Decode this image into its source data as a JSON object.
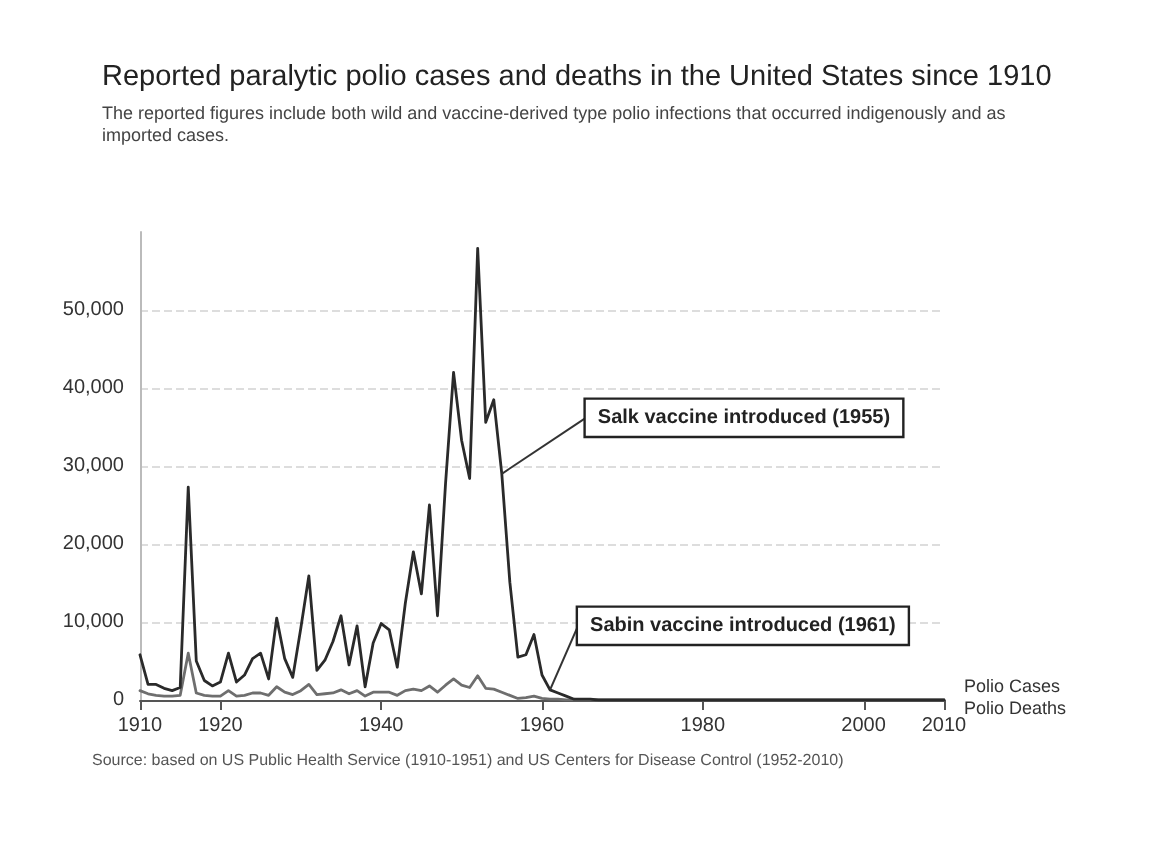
{
  "chart_data": {
    "type": "line",
    "title": "Reported paralytic polio cases and deaths in the United States since 1910",
    "subtitle": "The reported figures include both wild and vaccine-derived type polio infections that occurred indigenously and as imported cases.",
    "x": [
      1910,
      1911,
      1912,
      1913,
      1914,
      1915,
      1916,
      1917,
      1918,
      1919,
      1920,
      1921,
      1922,
      1923,
      1924,
      1925,
      1926,
      1927,
      1928,
      1929,
      1930,
      1931,
      1932,
      1933,
      1934,
      1935,
      1936,
      1937,
      1938,
      1939,
      1940,
      1941,
      1942,
      1943,
      1944,
      1945,
      1946,
      1947,
      1948,
      1949,
      1950,
      1951,
      1952,
      1953,
      1954,
      1955,
      1956,
      1957,
      1958,
      1959,
      1960,
      1961,
      1962,
      1963,
      1964,
      1965,
      1966,
      1967,
      1968,
      1969,
      1970,
      1980,
      1990,
      2000,
      2010
    ],
    "series": [
      {
        "name": "Polio Cases",
        "color": "#2a2a2a",
        "values": [
          5800,
          2000,
          2000,
          1500,
          1200,
          1600,
          27300,
          5000,
          2500,
          1800,
          2300,
          6000,
          2300,
          3200,
          5300,
          6000,
          2700,
          10500,
          5300,
          2900,
          9200,
          15900,
          3800,
          5100,
          7500,
          10800,
          4500,
          9500,
          1700,
          7300,
          9800,
          9000,
          4200,
          12400,
          19000,
          13600,
          25000,
          10800,
          27700,
          42000,
          33300,
          28400,
          57900,
          35600,
          38500,
          29000,
          15100,
          5500,
          5800,
          8400,
          3200,
          1300,
          900,
          500,
          100,
          100,
          100,
          0,
          0,
          0,
          0,
          0,
          0,
          0,
          0
        ]
      },
      {
        "name": "Polio Deaths",
        "color": "#6e6e6e",
        "values": [
          1200,
          800,
          600,
          500,
          500,
          600,
          6000,
          900,
          600,
          500,
          500,
          1200,
          500,
          600,
          900,
          900,
          600,
          1700,
          1000,
          700,
          1200,
          2000,
          700,
          800,
          900,
          1300,
          800,
          1200,
          500,
          1000,
          1000,
          1000,
          600,
          1200,
          1400,
          1200,
          1800,
          1000,
          1900,
          2700,
          1900,
          1600,
          3100,
          1500,
          1400,
          1000,
          600,
          200,
          300,
          500,
          200,
          100,
          100,
          0,
          0,
          0,
          0,
          0,
          0,
          0,
          0,
          0,
          0,
          0,
          0
        ]
      }
    ],
    "xlim": [
      1910,
      2010
    ],
    "xticks": [
      1910,
      1920,
      1940,
      1960,
      1980,
      2000,
      2010
    ],
    "ylim": [
      0,
      60000
    ],
    "yticks": [
      0,
      {
        "value": 10000,
        "label": "10,000"
      },
      {
        "value": 20000,
        "label": "20,000"
      },
      {
        "value": 30000,
        "label": "30,000"
      },
      {
        "value": 40000,
        "label": "40,000"
      },
      {
        "value": 50000,
        "label": "50,000"
      }
    ],
    "grid": "y",
    "marker": "none",
    "line_style": "solid",
    "legend": false,
    "annotations": [
      {
        "text": "Salk vaccine introduced (1955)",
        "x": 1955,
        "y": 29000
      },
      {
        "text": "Sabin vaccine introduced (1961)",
        "x": 1961,
        "y": 1300
      },
      "Source: based on US Public Health Service (1910-1951) and US Centers for Disease Control (1952-2010)"
    ]
  }
}
